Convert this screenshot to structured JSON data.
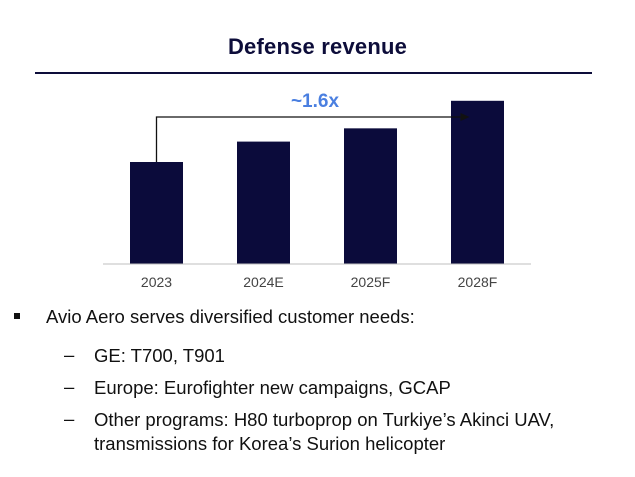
{
  "slide": {
    "title": "Defense revenue",
    "bullet": "Avio Aero serves diversified customer needs:",
    "dash": "–",
    "sub_bullets": [
      "GE: T700, T901",
      "Europe: Eurofighter new campaigns, GCAP",
      "Other programs: H80 turboprop on Turkiye’s Akinci UAV, transmissions for Korea’s Surion helicopter"
    ]
  },
  "colors": {
    "bar": "#0b0b3b",
    "annotation": "#4a7fe0",
    "axis": "#bfbfbf",
    "tick_label": "#444444"
  },
  "chart_data": {
    "type": "bar",
    "categories": [
      "2023",
      "2024E",
      "2025F",
      "2028F"
    ],
    "values": [
      1.0,
      1.2,
      1.33,
      1.6
    ],
    "annotation": "~1.6x",
    "annotation_span": [
      "2023",
      "2028F"
    ],
    "ylim": [
      0,
      1.85
    ],
    "grid": false,
    "legend": "none"
  }
}
